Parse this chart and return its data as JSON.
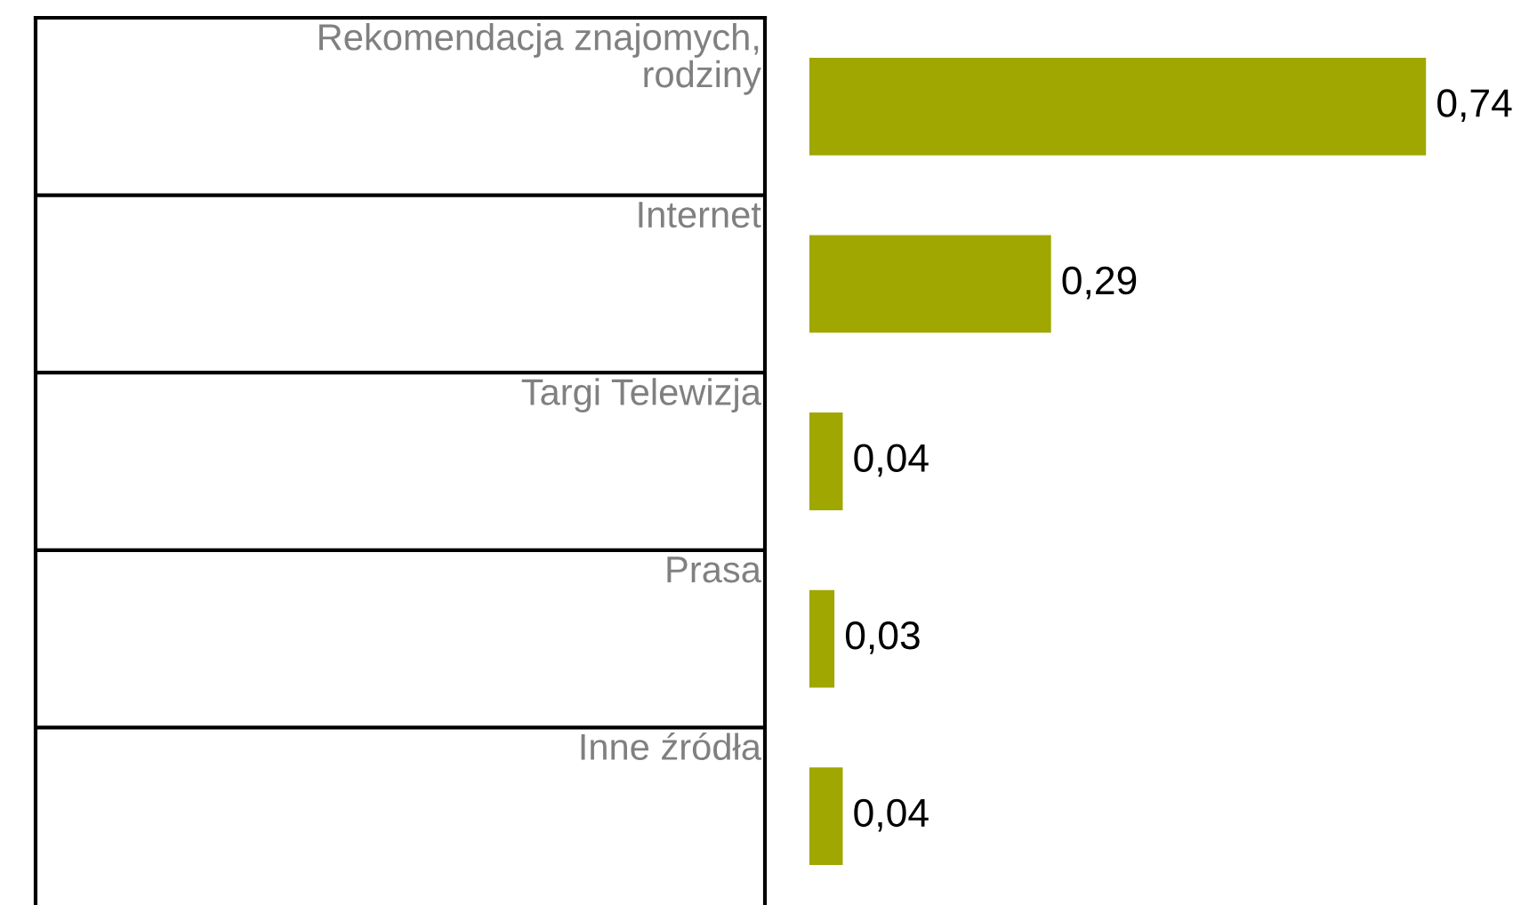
{
  "chart_data": {
    "type": "bar",
    "orientation": "horizontal",
    "categories": [
      "Rekomendacja znajomych,\nrodziny",
      "Internet",
      "Targi Telewizja",
      "Prasa",
      "Inne źródła"
    ],
    "values": [
      0.74,
      0.29,
      0.04,
      0.03,
      0.04
    ],
    "value_labels": [
      "0,74",
      "0,29",
      "0,04",
      "0,03",
      "0,04"
    ],
    "color": "#9fa700"
  }
}
